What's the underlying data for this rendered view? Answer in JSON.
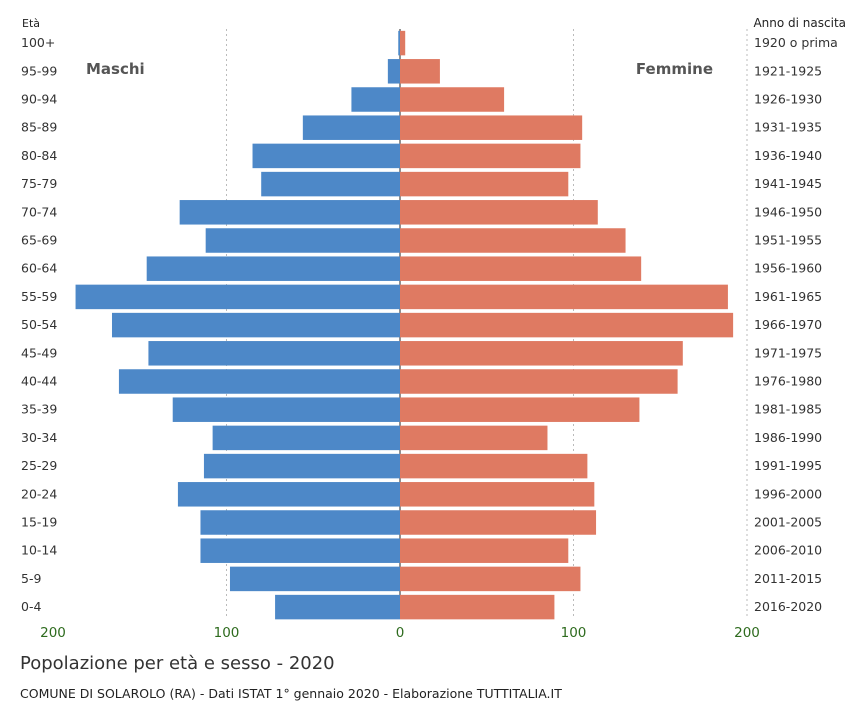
{
  "colors": {
    "male": "#4d88c8",
    "female": "#df7a62",
    "axis_tick": "#2e6b1e",
    "grid": "#bbbbbb",
    "text": "#333333"
  },
  "chart_data": {
    "type": "bar",
    "orientation": "horizontal-population-pyramid",
    "title": "Popolazione per età e sesso - 2020",
    "subtitle": "COMUNE DI SOLAROLO (RA) - Dati ISTAT 1° gennaio 2020 - Elaborazione TUTTITALIA.IT",
    "left_axis_title": "Età",
    "right_axis_title": "Anno di nascita",
    "male_label": "Maschi",
    "female_label": "Femmine",
    "x_ticks": [
      200,
      100,
      0,
      100,
      200
    ],
    "xlim": [
      -200,
      200
    ],
    "grid": true,
    "categories": [
      "100+",
      "95-99",
      "90-94",
      "85-89",
      "80-84",
      "75-79",
      "70-74",
      "65-69",
      "60-64",
      "55-59",
      "50-54",
      "45-49",
      "40-44",
      "35-39",
      "30-34",
      "25-29",
      "20-24",
      "15-19",
      "10-14",
      "5-9",
      "0-4"
    ],
    "birth_years": [
      "1920 o prima",
      "1921-1925",
      "1926-1930",
      "1931-1935",
      "1936-1940",
      "1941-1945",
      "1946-1950",
      "1951-1955",
      "1956-1960",
      "1961-1965",
      "1966-1970",
      "1971-1975",
      "1976-1980",
      "1981-1985",
      "1986-1990",
      "1991-1995",
      "1996-2000",
      "2001-2005",
      "2006-2010",
      "2011-2015",
      "2016-2020"
    ],
    "series": [
      {
        "name": "Maschi",
        "values": [
          1,
          7,
          28,
          56,
          85,
          80,
          127,
          112,
          146,
          187,
          166,
          145,
          162,
          131,
          108,
          113,
          128,
          115,
          115,
          98,
          72
        ]
      },
      {
        "name": "Femmine",
        "values": [
          3,
          23,
          60,
          105,
          104,
          97,
          114,
          130,
          139,
          189,
          192,
          163,
          160,
          138,
          85,
          108,
          112,
          113,
          97,
          104,
          89
        ]
      }
    ]
  }
}
